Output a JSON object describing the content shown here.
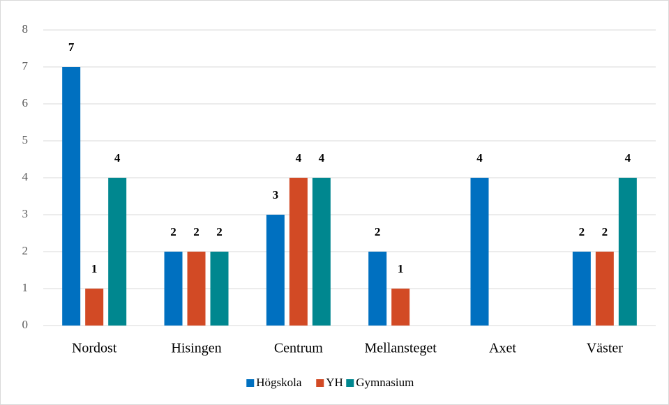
{
  "chart_data": {
    "type": "bar",
    "categories": [
      "Nordost",
      "Hisingen",
      "Centrum",
      "Mellansteget",
      "Axet",
      "Väster"
    ],
    "series": [
      {
        "name": "Högskola",
        "color": "#0070c0",
        "values": [
          7,
          2,
          3,
          2,
          4,
          2
        ]
      },
      {
        "name": "YH",
        "color": "#d24a25",
        "values": [
          1,
          2,
          4,
          1,
          null,
          2
        ]
      },
      {
        "name": "Gymnasium",
        "color": "#00878f",
        "values": [
          4,
          2,
          4,
          null,
          null,
          4
        ]
      }
    ],
    "ylim": [
      0,
      8
    ],
    "yticks": [
      0,
      1,
      2,
      3,
      4,
      5,
      6,
      7,
      8
    ],
    "grid": true,
    "legend": "bottom"
  }
}
